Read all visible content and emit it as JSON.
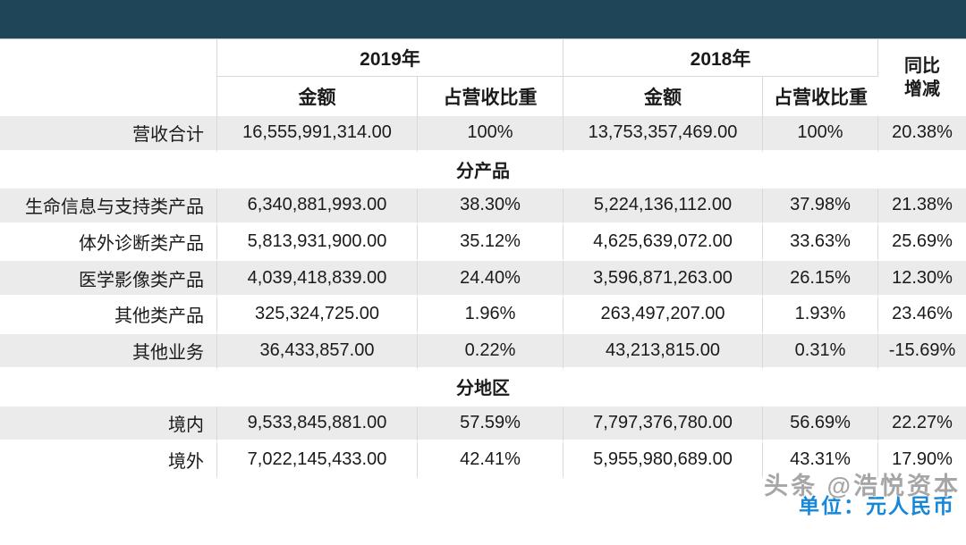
{
  "banner": {
    "color": "#1e4558"
  },
  "table": {
    "header": {
      "year_2019": "2019年",
      "year_2018": "2018年",
      "yoy_line1": "同比",
      "yoy_line2": "增减",
      "amount_2019": "金额",
      "share_2019": "占营收比重",
      "amount_2018": "金额",
      "share_2018": "占营收比重"
    },
    "rows": [
      {
        "type": "data",
        "label": "营收合计",
        "a2019": "16,555,991,314.00",
        "p2019": "100%",
        "a2018": "13,753,357,469.00",
        "p2018": "100%",
        "yoy": "20.38%"
      },
      {
        "type": "section",
        "label": "分产品"
      },
      {
        "type": "data",
        "label": "生命信息与支持类产品",
        "a2019": "6,340,881,993.00",
        "p2019": "38.30%",
        "a2018": "5,224,136,112.00",
        "p2018": "37.98%",
        "yoy": "21.38%"
      },
      {
        "type": "data",
        "label": "体外诊断类产品",
        "a2019": "5,813,931,900.00",
        "p2019": "35.12%",
        "a2018": "4,625,639,072.00",
        "p2018": "33.63%",
        "yoy": "25.69%"
      },
      {
        "type": "data",
        "label": "医学影像类产品",
        "a2019": "4,039,418,839.00",
        "p2019": "24.40%",
        "a2018": "3,596,871,263.00",
        "p2018": "26.15%",
        "yoy": "12.30%"
      },
      {
        "type": "data",
        "label": "其他类产品",
        "a2019": "325,324,725.00",
        "p2019": "1.96%",
        "a2018": "263,497,207.00",
        "p2018": "1.93%",
        "yoy": "23.46%"
      },
      {
        "type": "data",
        "label": "其他业务",
        "a2019": "36,433,857.00",
        "p2019": "0.22%",
        "a2018": "43,213,815.00",
        "p2018": "0.31%",
        "yoy": "-15.69%"
      },
      {
        "type": "section",
        "label": "分地区"
      },
      {
        "type": "data",
        "label": "境内",
        "a2019": "9,533,845,881.00",
        "p2019": "57.59%",
        "a2018": "7,797,376,780.00",
        "p2018": "56.69%",
        "yoy": "22.27%"
      },
      {
        "type": "data",
        "label": "境外",
        "a2019": "7,022,145,433.00",
        "p2019": "42.41%",
        "a2018": "5,955,980,689.00",
        "p2018": "43.31%",
        "yoy": "17.90%"
      }
    ]
  },
  "footer": {
    "watermark": "头条 @浩悦资本",
    "unit": "单位：元人民币"
  },
  "colors": {
    "banner": "#1e4558",
    "row_shade": "#ebebeb",
    "border": "#d9d9d9",
    "unit_text": "#1788d8",
    "watermark_text": "#969696"
  }
}
